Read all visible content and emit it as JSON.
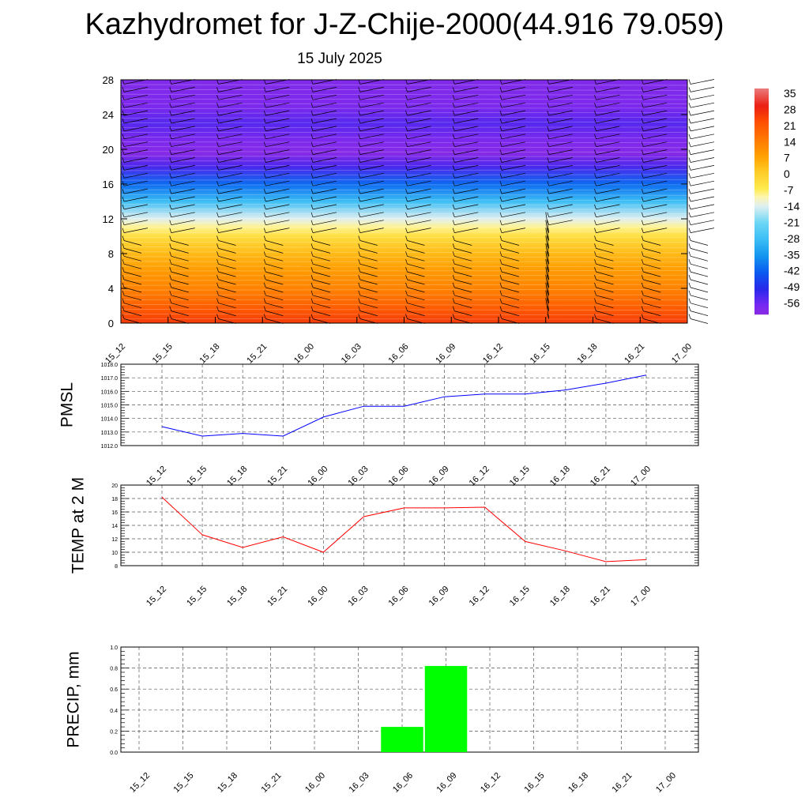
{
  "title": "Kazhydromet for J-Z-Chije-2000(44.916 79.059)",
  "subtitle": "15 July 2025",
  "time_labels": [
    "15_12",
    "15_15",
    "15_18",
    "15_21",
    "16_00",
    "16_03",
    "16_06",
    "16_09",
    "16_12",
    "16_15",
    "16_18",
    "16_21",
    "17_00"
  ],
  "chart_data": [
    {
      "type": "heatmap",
      "title": "",
      "ylabel": "",
      "x": [
        "15_12",
        "15_15",
        "15_18",
        "15_21",
        "16_00",
        "16_03",
        "16_06",
        "16_09",
        "16_12",
        "16_15",
        "16_18",
        "16_21",
        "17_00"
      ],
      "y_ticks": [
        0,
        4,
        8,
        12,
        16,
        20,
        24,
        28
      ],
      "ylim": [
        0,
        28
      ],
      "colorbar": {
        "ticks": [
          35,
          28,
          21,
          14,
          7,
          0,
          -7,
          -14,
          -21,
          -28,
          -35,
          -42,
          -49,
          -56
        ],
        "colors": {
          "warm_top": "#ff5a00",
          "orange": "#ff9a00",
          "yellow": "#ffe89a",
          "light_blue": "#48c8f0",
          "blue": "#1030e0",
          "purple": "#8a2be2"
        }
      },
      "temperature_profile": [
        {
          "y": 0,
          "t": 24
        },
        {
          "y": 2,
          "t": 18
        },
        {
          "y": 4,
          "t": 12
        },
        {
          "y": 6,
          "t": 8
        },
        {
          "y": 8,
          "t": 3
        },
        {
          "y": 10,
          "t": -4
        },
        {
          "y": 11,
          "t": -9
        },
        {
          "y": 12,
          "t": -14
        },
        {
          "y": 14,
          "t": -28
        },
        {
          "y": 16,
          "t": -40
        },
        {
          "y": 18,
          "t": -52
        },
        {
          "y": 19.5,
          "t": -59
        },
        {
          "y": 21,
          "t": -57
        },
        {
          "y": 23,
          "t": -53
        },
        {
          "y": 25,
          "t": -57
        },
        {
          "y": 28,
          "t": -58
        }
      ],
      "wind_barbs": "present"
    },
    {
      "type": "line",
      "ylabel": "PMSL",
      "x": [
        "15_12",
        "15_15",
        "15_18",
        "15_21",
        "16_00",
        "16_03",
        "16_06",
        "16_09",
        "16_12",
        "16_15",
        "16_18",
        "16_21",
        "17_00"
      ],
      "series": [
        {
          "values": [
            1013.4,
            1012.7,
            1012.9,
            1012.7,
            1014.1,
            1014.9,
            1014.9,
            1015.6,
            1015.8,
            1015.8,
            1016.1,
            1016.6,
            1017.2
          ],
          "color": "#0000ff"
        }
      ],
      "ylim": [
        1012.0,
        1018.0
      ],
      "y_ticks": [
        "1012.0",
        "1013.0",
        "1014.0",
        "1015.0",
        "1016.0",
        "1017.0",
        "1018.0"
      ],
      "grid": true
    },
    {
      "type": "line",
      "ylabel": "TEMP at 2 M",
      "x": [
        "15_12",
        "15_15",
        "15_18",
        "15_21",
        "16_00",
        "16_03",
        "16_06",
        "16_09",
        "16_12",
        "16_15",
        "16_18",
        "16_21",
        "17_00"
      ],
      "series": [
        {
          "values": [
            18.2,
            12.6,
            10.7,
            12.3,
            10.0,
            15.3,
            16.6,
            16.6,
            16.7,
            11.6,
            10.2,
            8.6,
            8.9
          ],
          "color": "#ff0000"
        }
      ],
      "ylim": [
        8,
        20
      ],
      "y_ticks": [
        "8",
        "10",
        "12",
        "14",
        "16",
        "18",
        "20"
      ],
      "grid": true
    },
    {
      "type": "bar",
      "ylabel": "PRECIP, mm",
      "categories": [
        "15_12",
        "15_15",
        "15_18",
        "15_21",
        "16_00",
        "16_03",
        "16_06",
        "16_09",
        "16_12",
        "16_15",
        "16_18",
        "16_21",
        "17_00"
      ],
      "series": [
        {
          "values": [
            0,
            0,
            0,
            0,
            0,
            0,
            0.24,
            0.82,
            0,
            0,
            0,
            0,
            0
          ],
          "color": "#00ff00"
        }
      ],
      "ylim": [
        0,
        1.0
      ],
      "y_ticks": [
        "0.0",
        "0.2",
        "0.4",
        "0.6",
        "0.8",
        "1.0"
      ],
      "grid": true
    }
  ]
}
